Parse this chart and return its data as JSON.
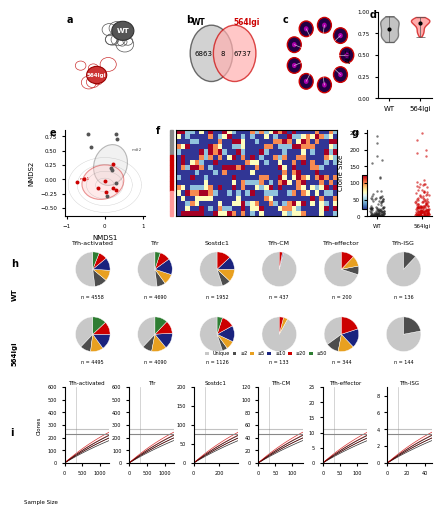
{
  "panel_labels": [
    "a",
    "b",
    "c",
    "d",
    "e",
    "f",
    "g",
    "h",
    "i"
  ],
  "venn_wt_only": 6863,
  "venn_564lgi_only": 6737,
  "venn_shared": 8,
  "violin_wt_color": "#808080",
  "violin_564lgi_color": "#cc0000",
  "pie_categories": [
    "Unique",
    "≥2",
    "≥5",
    "≥10",
    "≥20",
    "≥50"
  ],
  "pie_colors": [
    "#c8c8c8",
    "#4d4d4d",
    "#e8a020",
    "#1a237e",
    "#cc0000",
    "#2e7d32"
  ],
  "pie_titles": [
    "Tfh-activated",
    "Tfr",
    "Sostdc1",
    "Tfh-CM",
    "Tfh-effector",
    "Tfh-ISG"
  ],
  "wt_pie_data": [
    [
      0.52,
      0.12,
      0.1,
      0.12,
      0.08,
      0.06
    ],
    [
      0.52,
      0.08,
      0.1,
      0.15,
      0.1,
      0.05
    ],
    [
      0.55,
      0.08,
      0.12,
      0.12,
      0.13,
      0.0
    ],
    [
      0.96,
      0.0,
      0.0,
      0.01,
      0.03,
      0.0
    ],
    [
      0.7,
      0.08,
      0.1,
      0.0,
      0.12,
      0.0
    ],
    [
      0.88,
      0.12,
      0.0,
      0.0,
      0.0,
      0.0
    ]
  ],
  "wt_n": [
    "n = 4558",
    "n = 4690",
    "n = 1952",
    "n = 437",
    "n = 200",
    "n = 136"
  ],
  "lgi_pie_data": [
    [
      0.38,
      0.1,
      0.12,
      0.15,
      0.12,
      0.13
    ],
    [
      0.38,
      0.09,
      0.14,
      0.15,
      0.12,
      0.12
    ],
    [
      0.55,
      0.05,
      0.08,
      0.15,
      0.12,
      0.05
    ],
    [
      0.92,
      0.0,
      0.04,
      0.0,
      0.04,
      0.0
    ],
    [
      0.35,
      0.12,
      0.15,
      0.18,
      0.2,
      0.0
    ],
    [
      0.78,
      0.22,
      0.0,
      0.0,
      0.0,
      0.0
    ]
  ],
  "lgi_n": [
    "n = 4495",
    "n = 4090",
    "n = 1126",
    "n = 133",
    "n = 344",
    "n = 144"
  ],
  "line_panel_titles": [
    "Tfh-activated",
    "Tfr",
    "Sostdc1",
    "Tfh-CM",
    "Tfh-effector",
    "Tfh-ISG"
  ],
  "line_xmax": [
    1250,
    1250,
    350,
    130,
    130,
    47
  ],
  "line_ymax": [
    600,
    600,
    200,
    120,
    25,
    9
  ],
  "heatmap_bg": "#4169b0",
  "scatter_wt_color": "#000000",
  "scatter_lgi_color": "#cc0000"
}
